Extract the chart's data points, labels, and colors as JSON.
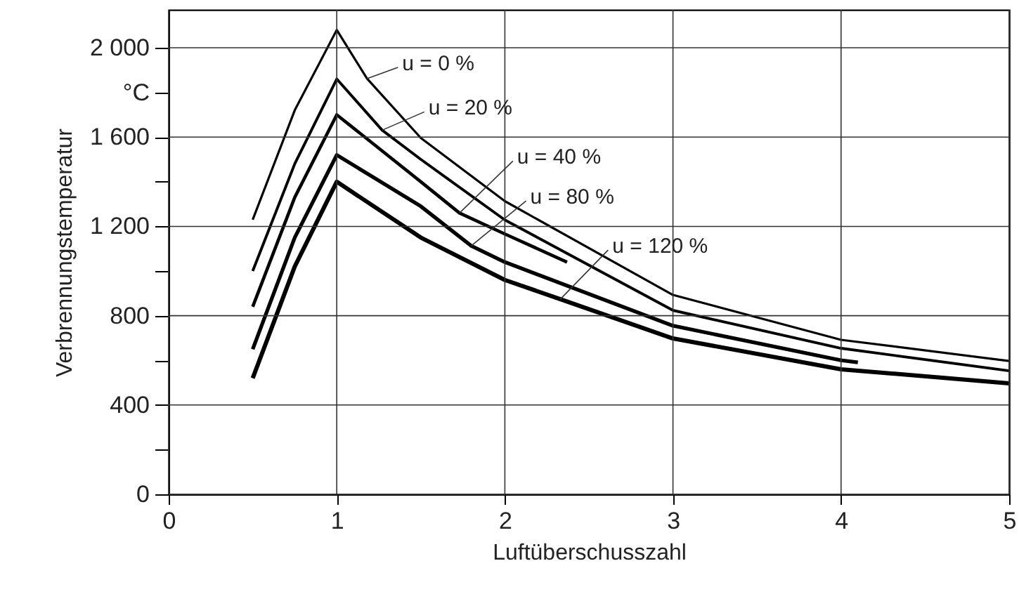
{
  "chart_data": {
    "type": "line",
    "xlabel": "Luftüberschusszahl",
    "ylabel": "Verbrennungstemperatur",
    "xlim": [
      0,
      5
    ],
    "ylim": [
      0,
      2170
    ],
    "xticks": [
      0,
      1,
      2,
      3,
      4,
      5
    ],
    "yticks": [
      0,
      {
        "value": 200,
        "label": null
      },
      400,
      {
        "value": 600,
        "label": null
      },
      800,
      {
        "value": 1000,
        "label": null
      },
      {
        "value": 1200,
        "label": "1 200"
      },
      {
        "value": 1400,
        "label": null
      },
      {
        "value": 1600,
        "label": "1 600"
      },
      {
        "value": 1800,
        "label": "°C"
      },
      {
        "value": 2000,
        "label": "2 000"
      }
    ],
    "grid": true,
    "marker": "none",
    "line_style": "solid",
    "series": [
      {
        "color": "#000000",
        "x": [
          0.5,
          0.75,
          1,
          1.18,
          1.5,
          2,
          3,
          4,
          5
        ],
        "values": [
          1230,
          1720,
          2080,
          1862,
          1596,
          1313,
          893,
          692,
          597
        ]
      },
      {
        "color": "#000000",
        "x": [
          0.5,
          0.75,
          1,
          1.27,
          1.5,
          2,
          3,
          4,
          5
        ],
        "values": [
          1000,
          1480,
          1860,
          1631,
          1500,
          1229,
          824,
          654,
          553
        ]
      },
      {
        "color": "#000000",
        "x": [
          0.5,
          0.75,
          1,
          1.5,
          1.73,
          2,
          2.37
        ],
        "values": [
          840,
          1330,
          1700,
          1400,
          1260,
          1166,
          1040
        ]
      },
      {
        "color": "#000000",
        "x": [
          0.5,
          0.75,
          1,
          1.5,
          1.8,
          2,
          3,
          4,
          4.1
        ],
        "values": [
          650,
          1150,
          1520,
          1290,
          1113,
          1040,
          755,
          600,
          591
        ]
      },
      {
        "color": "#000000",
        "x": [
          0.5,
          0.75,
          1,
          1.5,
          2,
          2.33,
          3,
          4,
          5
        ],
        "values": [
          520,
          1020,
          1400,
          1150,
          960,
          874,
          698,
          560,
          497
        ]
      }
    ],
    "annotations": [
      {
        "text": "u = 0 %",
        "x": 1.18,
        "y": 1862
      },
      {
        "text": "u = 20 %",
        "x": 1.27,
        "y": 1631
      },
      {
        "text": "u = 40 %",
        "x": 1.73,
        "y": 1260
      },
      {
        "text": "u = 80 %",
        "x": 1.8,
        "y": 1113
      },
      {
        "text": "u = 120 %",
        "x": 2.33,
        "y": 874
      }
    ]
  }
}
